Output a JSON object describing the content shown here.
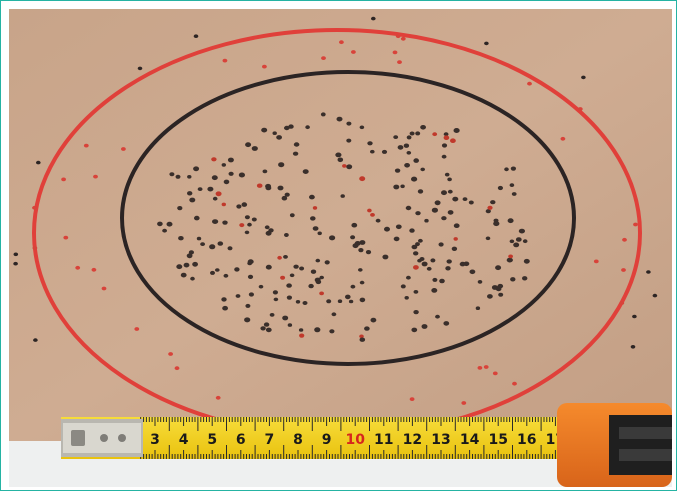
{
  "image": {
    "alt": "",
    "colors": {
      "cardboard": "#c9a58a",
      "outer_ring": "#e0403a",
      "inner_ring": "#2b2424",
      "tape_yellow": "#f5d21a",
      "tape_case": "#f07a1e",
      "frame": "#25b3a3"
    }
  },
  "tape": {
    "numbers": [
      "3",
      "4",
      "5",
      "6",
      "7",
      "8",
      "9",
      "10",
      "11",
      "12",
      "13",
      "14",
      "15",
      "16",
      "17"
    ],
    "highlight": "10"
  }
}
